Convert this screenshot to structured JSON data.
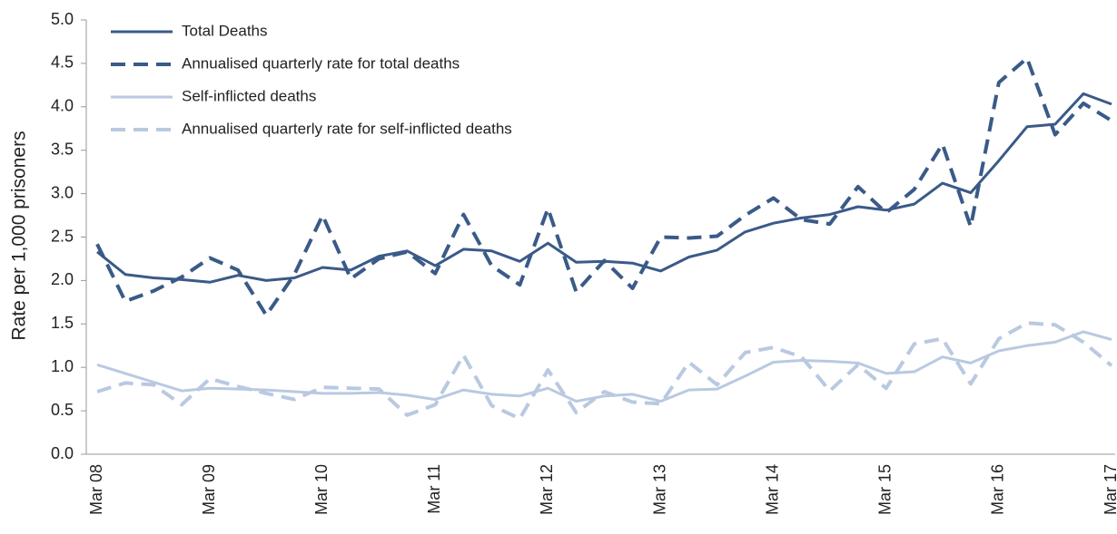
{
  "chart_data": {
    "type": "line",
    "y_label": "Rate per 1,000 prisoners",
    "categories": [
      "Mar 08",
      null,
      null,
      null,
      "Mar 09",
      null,
      null,
      null,
      "Mar 10",
      null,
      null,
      null,
      "Mar 11",
      null,
      null,
      null,
      "Mar 12",
      null,
      null,
      null,
      "Mar 13",
      null,
      null,
      null,
      "Mar 14",
      null,
      null,
      null,
      "Mar 15",
      null,
      null,
      null,
      "Mar 16",
      null,
      null,
      null,
      "Mar 17"
    ],
    "series": [
      {
        "name": "Total Deaths",
        "color": "#3a5a88",
        "dashed": false,
        "values": [
          2.33,
          2.07,
          2.03,
          2.01,
          1.98,
          2.06,
          2.0,
          2.03,
          2.15,
          2.12,
          2.28,
          2.34,
          2.17,
          2.36,
          2.34,
          2.22,
          2.43,
          2.21,
          2.22,
          2.2,
          2.11,
          2.27,
          2.35,
          2.56,
          2.66,
          2.72,
          2.76,
          2.85,
          2.81,
          2.88,
          3.12,
          3.01,
          3.38,
          3.77,
          3.8,
          4.15,
          4.03
        ]
      },
      {
        "name": "Annualised quarterly rate for total deaths",
        "color": "#3a5a88",
        "dashed": true,
        "values": [
          2.42,
          1.76,
          1.88,
          2.04,
          2.26,
          2.12,
          1.6,
          2.07,
          2.75,
          2.02,
          2.25,
          2.33,
          2.08,
          2.76,
          2.17,
          1.95,
          2.83,
          1.87,
          2.23,
          1.91,
          2.5,
          2.49,
          2.51,
          2.75,
          2.95,
          2.7,
          2.65,
          3.08,
          2.78,
          3.05,
          3.57,
          2.62,
          4.28,
          4.56,
          3.68,
          4.04,
          3.84
        ]
      },
      {
        "name": "Self-inflicted deaths",
        "color": "#b9c9e1",
        "dashed": false,
        "values": [
          1.03,
          0.93,
          0.83,
          0.73,
          0.76,
          0.75,
          0.74,
          0.72,
          0.7,
          0.7,
          0.71,
          0.68,
          0.63,
          0.74,
          0.69,
          0.67,
          0.76,
          0.61,
          0.67,
          0.69,
          0.61,
          0.74,
          0.75,
          0.9,
          1.06,
          1.08,
          1.07,
          1.05,
          0.93,
          0.95,
          1.12,
          1.05,
          1.19,
          1.25,
          1.29,
          1.41,
          1.32
        ]
      },
      {
        "name": "Annualised quarterly rate for self-inflicted deaths",
        "color": "#b9c9e1",
        "dashed": true,
        "values": [
          0.72,
          0.82,
          0.8,
          0.57,
          0.87,
          0.78,
          0.7,
          0.63,
          0.77,
          0.76,
          0.75,
          0.45,
          0.57,
          1.14,
          0.56,
          0.41,
          0.97,
          0.48,
          0.72,
          0.6,
          0.58,
          1.06,
          0.8,
          1.17,
          1.23,
          1.12,
          0.73,
          1.03,
          0.76,
          1.27,
          1.33,
          0.81,
          1.33,
          1.51,
          1.49,
          1.29,
          1.02
        ]
      }
    ],
    "ylim": [
      0,
      5
    ],
    "yticks": [
      {
        "value": 0,
        "label": "0.0"
      },
      {
        "value": 0.5,
        "label": "0.5"
      },
      {
        "value": 1,
        "label": "1.0"
      },
      {
        "value": 1.5,
        "label": "1.5"
      },
      {
        "value": 2,
        "label": "2.0"
      },
      {
        "value": 2.5,
        "label": "2.5"
      },
      {
        "value": 3,
        "label": "3.0"
      },
      {
        "value": 3.5,
        "label": "3.5"
      },
      {
        "value": 4,
        "label": "4.0"
      },
      {
        "value": 4.5,
        "label": "4.5"
      },
      {
        "value": 5,
        "label": "5.0"
      }
    ],
    "legend": "top-left",
    "grid": false
  }
}
